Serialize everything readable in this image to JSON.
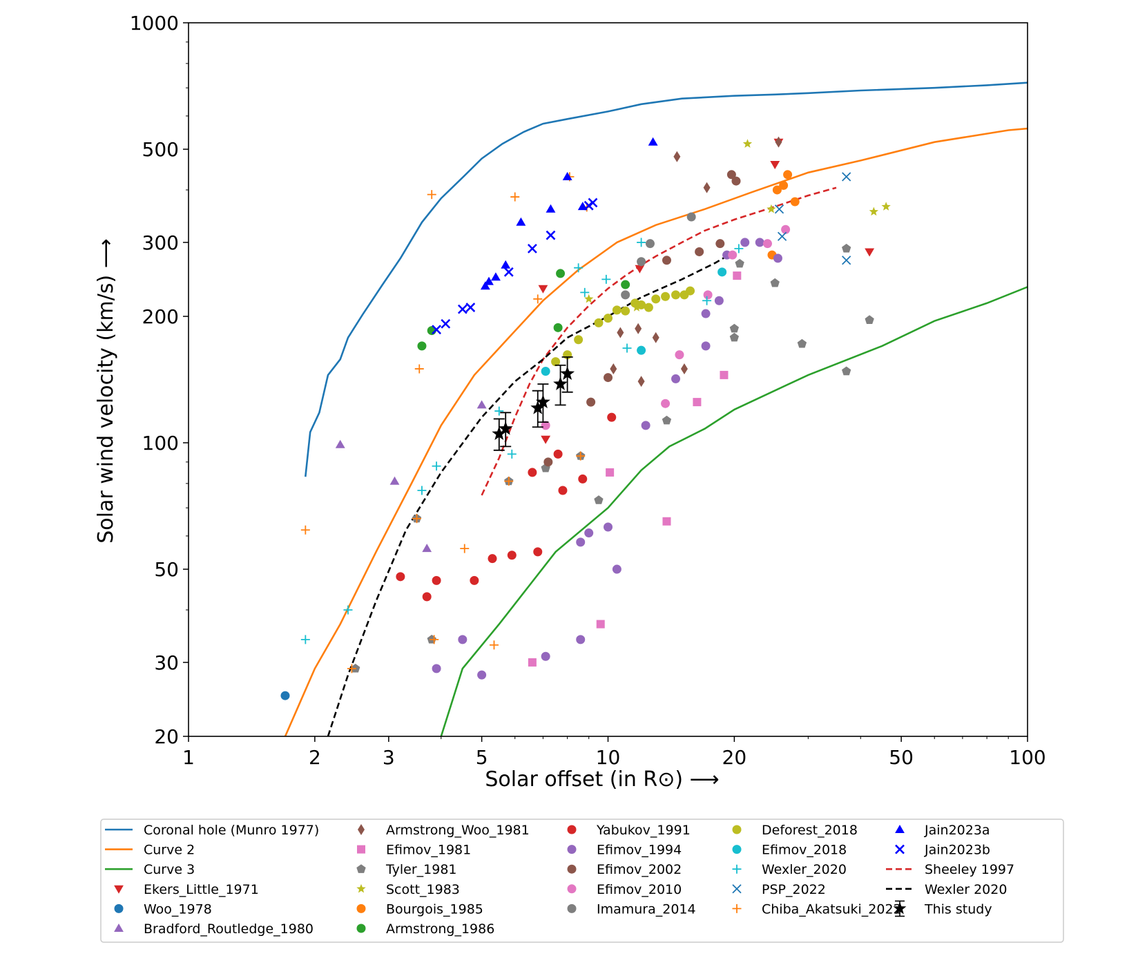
{
  "chart_data": {
    "type": "scatter",
    "xlabel": "Solar offset (in R⊙)  ⟶",
    "ylabel": "Solar wind velocity (km/s) ⟶",
    "x_scale": "log",
    "y_scale": "log",
    "xlim": [
      1,
      100
    ],
    "ylim": [
      20,
      1000
    ],
    "x_ticks": [
      1,
      2,
      3,
      5,
      10,
      20,
      50,
      100
    ],
    "x_tick_labels": [
      "1",
      "2",
      "3",
      "5",
      "10",
      "20",
      "50",
      "100"
    ],
    "y_ticks": [
      20,
      30,
      50,
      100,
      200,
      300,
      500,
      1000
    ],
    "y_tick_labels": [
      "20",
      "30",
      "50",
      "100",
      "200",
      "300",
      "500",
      "1000"
    ],
    "grid": false,
    "legend_placement": "bottom",
    "lines": [
      {
        "name": "Coronal hole (Munro 1977)",
        "color": "#1f77b4",
        "style": "solid",
        "x": [
          1.9,
          1.95,
          2.05,
          2.15,
          2.3,
          2.4,
          2.6,
          2.9,
          3.2,
          3.6,
          4.0,
          4.5,
          5.0,
          5.6,
          6.3,
          7.0,
          8.0,
          10,
          12,
          15,
          20,
          25,
          30,
          40,
          60,
          80,
          100
        ],
        "y": [
          83,
          106,
          118,
          145,
          158,
          178,
          202,
          238,
          275,
          335,
          382,
          428,
          475,
          515,
          550,
          575,
          590,
          615,
          640,
          660,
          670,
          675,
          680,
          690,
          700,
          710,
          720
        ]
      },
      {
        "name": "Curve 2",
        "color": "#ff7f0e",
        "style": "solid",
        "x": [
          1.7,
          2.0,
          2.3,
          2.8,
          3.4,
          4.0,
          4.8,
          5.8,
          7.0,
          8.5,
          10.5,
          13,
          17,
          22,
          30,
          40,
          60,
          90,
          100
        ],
        "y": [
          20,
          29,
          37,
          55,
          80,
          110,
          145,
          178,
          218,
          258,
          300,
          330,
          360,
          395,
          440,
          470,
          520,
          555,
          560
        ]
      },
      {
        "name": "Curve 3",
        "color": "#2ca02c",
        "style": "solid",
        "x": [
          4.0,
          4.5,
          5.5,
          7.5,
          10,
          12,
          14,
          17,
          20,
          30,
          45,
          60,
          80,
          100
        ],
        "y": [
          20,
          29,
          37,
          55,
          70,
          86,
          98,
          108,
          120,
          145,
          170,
          195,
          215,
          235
        ]
      },
      {
        "name": "Sheeley 1997",
        "color": "#d62728",
        "style": "dashed",
        "x": [
          5.0,
          5.5,
          6.0,
          6.5,
          7.0,
          8.0,
          9.0,
          10,
          11,
          12,
          13,
          15,
          17,
          20,
          25,
          30,
          35
        ],
        "y": [
          75,
          92,
          115,
          138,
          158,
          188,
          212,
          233,
          250,
          265,
          278,
          300,
          320,
          340,
          365,
          388,
          405
        ]
      },
      {
        "name": "Wexler 2020",
        "color": "#000000",
        "style": "dashed",
        "x": [
          2.15,
          2.4,
          2.8,
          3.3,
          4.0,
          5.0,
          6.0,
          7.0,
          8.0,
          10,
          12,
          15,
          18,
          20
        ],
        "y": [
          20,
          28,
          42,
          62,
          85,
          115,
          140,
          158,
          178,
          200,
          222,
          245,
          268,
          285
        ]
      }
    ],
    "series": [
      {
        "name": "Ekers_Little_1971",
        "marker": "triangle-down",
        "color": "#d62728",
        "points": [
          [
            7.1,
            102
          ],
          [
            7.0,
            233
          ],
          [
            11.9,
            260
          ],
          [
            25.0,
            460
          ],
          [
            25.5,
            520
          ],
          [
            42.0,
            285
          ]
        ]
      },
      {
        "name": "Woo_1978",
        "marker": "circle",
        "color": "#1f77b4",
        "points": [
          [
            1.7,
            25
          ]
        ]
      },
      {
        "name": "Bradford_Routledge_1980",
        "marker": "triangle-up",
        "color": "#9467bd",
        "points": [
          [
            2.3,
            99
          ],
          [
            3.1,
            81
          ],
          [
            3.7,
            56
          ],
          [
            5.0,
            123
          ]
        ]
      },
      {
        "name": "Armstrong_Woo_1981",
        "marker": "diamond",
        "color": "#8c564b",
        "points": [
          [
            14.6,
            480
          ],
          [
            17.2,
            405
          ],
          [
            25.5,
            520
          ],
          [
            11.8,
            187
          ],
          [
            10.3,
            150
          ],
          [
            12.0,
            140
          ],
          [
            13.0,
            178
          ],
          [
            15.2,
            150
          ],
          [
            10.7,
            183
          ]
        ]
      },
      {
        "name": "Efimov_1981",
        "marker": "square",
        "color": "#e377c2",
        "points": [
          [
            6.6,
            30
          ],
          [
            9.6,
            37
          ],
          [
            10.1,
            85
          ],
          [
            13.8,
            65
          ],
          [
            16.3,
            125
          ],
          [
            18.9,
            145
          ],
          [
            20.3,
            250
          ]
        ]
      },
      {
        "name": "Tyler_1981",
        "marker": "pentagon",
        "color": "#7f7f7f",
        "points": [
          [
            3.8,
            34
          ],
          [
            2.5,
            29
          ],
          [
            3.5,
            66
          ],
          [
            5.8,
            81
          ],
          [
            7.1,
            87
          ],
          [
            8.6,
            93
          ],
          [
            9.5,
            73
          ],
          [
            13.8,
            113
          ],
          [
            20.0,
            178
          ],
          [
            20.6,
            267
          ],
          [
            25.0,
            240
          ],
          [
            29.0,
            172
          ],
          [
            37.0,
            148
          ],
          [
            37.0,
            290
          ],
          [
            42.0,
            196
          ],
          [
            20.0,
            187
          ]
        ]
      },
      {
        "name": "Scott_1983",
        "marker": "star",
        "color": "#bcbd22",
        "points": [
          [
            9.0,
            220
          ],
          [
            11.7,
            210
          ],
          [
            21.5,
            515
          ],
          [
            24.5,
            360
          ],
          [
            43.0,
            355
          ],
          [
            46.0,
            365
          ]
        ]
      },
      {
        "name": "Bourgois_1985",
        "marker": "circle",
        "color": "#ff7f0e",
        "points": [
          [
            24.6,
            280
          ],
          [
            25.3,
            400
          ],
          [
            26.2,
            410
          ],
          [
            26.8,
            435
          ],
          [
            27.9,
            375
          ]
        ]
      },
      {
        "name": "Armstrong_1986",
        "marker": "circle",
        "color": "#2ca02c",
        "points": [
          [
            3.6,
            170
          ],
          [
            3.8,
            185
          ],
          [
            7.7,
            253
          ],
          [
            7.6,
            188
          ],
          [
            11.0,
            238
          ]
        ]
      },
      {
        "name": "Yabukov_1991",
        "marker": "circle",
        "color": "#d62728",
        "points": [
          [
            3.2,
            48
          ],
          [
            3.7,
            43
          ],
          [
            3.9,
            47
          ],
          [
            4.8,
            47
          ],
          [
            5.3,
            53
          ],
          [
            5.9,
            54
          ],
          [
            6.8,
            55
          ],
          [
            6.6,
            85
          ],
          [
            7.6,
            94
          ],
          [
            8.7,
            82
          ],
          [
            7.8,
            77
          ],
          [
            10.2,
            115
          ]
        ]
      },
      {
        "name": "Efimov_1994",
        "marker": "circle",
        "color": "#9467bd",
        "points": [
          [
            3.9,
            29
          ],
          [
            4.5,
            34
          ],
          [
            5.0,
            28
          ],
          [
            7.1,
            31
          ],
          [
            8.6,
            34
          ],
          [
            8.6,
            58
          ],
          [
            9.0,
            61
          ],
          [
            10.0,
            63
          ],
          [
            10.5,
            50
          ],
          [
            12.3,
            110
          ],
          [
            14.5,
            142
          ],
          [
            17.1,
            170
          ],
          [
            17.1,
            203
          ],
          [
            18.4,
            218
          ],
          [
            19.2,
            280
          ],
          [
            21.2,
            300
          ],
          [
            23.0,
            300
          ],
          [
            25.4,
            275
          ]
        ]
      },
      {
        "name": "Efimov_2002",
        "marker": "circle",
        "color": "#8c564b",
        "points": [
          [
            7.2,
            90
          ],
          [
            9.1,
            125
          ],
          [
            10.0,
            143
          ],
          [
            13.8,
            272
          ],
          [
            16.5,
            285
          ],
          [
            18.5,
            298
          ],
          [
            19.7,
            435
          ],
          [
            20.2,
            420
          ]
        ]
      },
      {
        "name": "Efimov_2010",
        "marker": "circle",
        "color": "#e377c2",
        "points": [
          [
            7.1,
            110
          ],
          [
            13.7,
            124
          ],
          [
            14.8,
            162
          ],
          [
            17.3,
            225
          ],
          [
            19.8,
            280
          ],
          [
            24.0,
            298
          ],
          [
            26.5,
            322
          ]
        ]
      },
      {
        "name": "Imamura_2014",
        "marker": "circle",
        "color": "#7f7f7f",
        "points": [
          [
            12.0,
            270
          ],
          [
            12.6,
            298
          ],
          [
            15.8,
            345
          ],
          [
            11.0,
            225
          ]
        ]
      },
      {
        "name": "Deforest_2018",
        "marker": "circle",
        "color": "#bcbd22",
        "points": [
          [
            7.5,
            156
          ],
          [
            8.0,
            162
          ],
          [
            8.5,
            176
          ],
          [
            9.5,
            193
          ],
          [
            10.0,
            198
          ],
          [
            10.5,
            207
          ],
          [
            11.0,
            206
          ],
          [
            11.6,
            215
          ],
          [
            12.0,
            213
          ],
          [
            12.5,
            210
          ],
          [
            13.0,
            220
          ],
          [
            13.7,
            223
          ],
          [
            14.5,
            225
          ],
          [
            15.2,
            225
          ],
          [
            15.7,
            230
          ]
        ]
      },
      {
        "name": "Efimov_2018",
        "marker": "circle",
        "color": "#17becf",
        "points": [
          [
            7.1,
            148
          ],
          [
            12.0,
            166
          ],
          [
            18.7,
            255
          ]
        ]
      },
      {
        "name": "Wexler_2020",
        "marker": "plus",
        "color": "#17becf",
        "points": [
          [
            1.9,
            34
          ],
          [
            2.4,
            40
          ],
          [
            3.6,
            77
          ],
          [
            3.9,
            88
          ],
          [
            5.5,
            119
          ],
          [
            5.9,
            94
          ],
          [
            8.5,
            261
          ],
          [
            8.8,
            228
          ],
          [
            9.9,
            245
          ],
          [
            11.1,
            168
          ],
          [
            12.0,
            300
          ],
          [
            17.2,
            218
          ],
          [
            20.5,
            290
          ]
        ]
      },
      {
        "name": "PSP_2022",
        "marker": "x",
        "color": "#1f77b4",
        "points": [
          [
            25.6,
            360
          ],
          [
            26.0,
            310
          ],
          [
            37.0,
            430
          ],
          [
            37.0,
            272
          ]
        ]
      },
      {
        "name": "Chiba_Akatsuki_2022",
        "marker": "plus",
        "color": "#ff7f0e",
        "points": [
          [
            1.9,
            62
          ],
          [
            2.45,
            29
          ],
          [
            3.5,
            66
          ],
          [
            3.85,
            34
          ],
          [
            4.55,
            56
          ],
          [
            5.35,
            33
          ],
          [
            5.8,
            81
          ],
          [
            6.8,
            220
          ],
          [
            8.6,
            93
          ],
          [
            8.1,
            430
          ],
          [
            8.9,
            364
          ],
          [
            3.55,
            150
          ],
          [
            3.8,
            390
          ],
          [
            6.0,
            385
          ]
        ]
      },
      {
        "name": "Jain2023a",
        "marker": "triangle-up",
        "color": "#0000ff",
        "points": [
          [
            5.1,
            236
          ],
          [
            5.4,
            248
          ],
          [
            5.2,
            242
          ],
          [
            5.7,
            265
          ],
          [
            6.2,
            335
          ],
          [
            7.3,
            360
          ],
          [
            8.0,
            430
          ],
          [
            8.7,
            365
          ],
          [
            12.8,
            520
          ]
        ]
      },
      {
        "name": "Jain2023b",
        "marker": "x",
        "color": "#0000ff",
        "points": [
          [
            3.9,
            186
          ],
          [
            4.1,
            192
          ],
          [
            4.5,
            208
          ],
          [
            4.7,
            210
          ],
          [
            5.8,
            255
          ],
          [
            6.6,
            290
          ],
          [
            7.3,
            312
          ],
          [
            9.0,
            367
          ],
          [
            9.2,
            373
          ]
        ]
      },
      {
        "name": "This study",
        "marker": "star-errorbar",
        "color": "#000000",
        "points": [
          [
            5.5,
            105
          ],
          [
            5.7,
            108
          ],
          [
            6.8,
            121
          ],
          [
            7.0,
            125
          ],
          [
            7.7,
            138
          ],
          [
            8.0,
            146
          ]
        ],
        "errors": [
          9,
          10,
          12,
          13,
          15,
          14
        ]
      }
    ],
    "legend": [
      [
        "Coronal hole (Munro 1977)",
        "Curve 2",
        "Curve 3",
        "Ekers_Little_1971",
        "Woo_1978",
        "Bradford_Routledge_1980"
      ],
      [
        "Armstrong_Woo_1981",
        "Efimov_1981",
        "Tyler_1981",
        "Scott_1983",
        "Bourgois_1985",
        "Armstrong_1986"
      ],
      [
        "Yabukov_1991",
        "Efimov_1994",
        "Efimov_2002",
        "Efimov_2010",
        "Imamura_2014"
      ],
      [
        "Deforest_2018",
        "Efimov_2018",
        "Wexler_2020",
        "PSP_2022",
        "Chiba_Akatsuki_2022"
      ],
      [
        "Jain2023a",
        "Jain2023b",
        "Sheeley 1997",
        "Wexler 2020",
        "This study"
      ]
    ]
  }
}
